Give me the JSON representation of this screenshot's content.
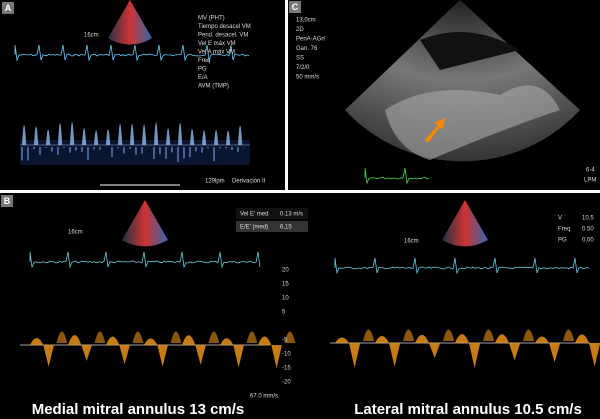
{
  "panels": {
    "a": {
      "label": "A",
      "depth": "16cm",
      "measurements": [
        "MV (PHT)",
        "Tiempo desacel VM",
        "Pend. desacel. VM",
        "Vel E máx VM",
        "Vel A máx VM",
        "Freq",
        "PG",
        "E/A",
        "AVM (TMP)"
      ],
      "heart_rate": "129lpm",
      "lead": "Derivación II"
    },
    "c": {
      "label": "C",
      "settings": [
        "13,0cm",
        "2D",
        "PenA-AGrl",
        "Gan. 76",
        "SS",
        "7/2/0",
        "50 mm/s"
      ],
      "probe": "6-4",
      "mode": "LPM"
    },
    "b": {
      "label": "B",
      "left": {
        "depth": "16cm",
        "readouts": [
          [
            "Vel E' med",
            "0.13 m/s"
          ],
          [
            "E/E' (med)",
            "6.15"
          ]
        ],
        "scale": [
          "20",
          "15",
          "10",
          "5",
          "-5",
          "-10",
          "-15",
          "-20"
        ],
        "sweep": "67.0 mm/s",
        "caption": "Medial mitral annulus 13 cm/s"
      },
      "right": {
        "depth": "16cm",
        "readouts": [
          [
            "V",
            "10.5"
          ],
          [
            "Freq",
            "0.50"
          ],
          [
            "PG",
            "0.00"
          ]
        ],
        "caption": "Lateral mitral annulus 10.5 cm/s"
      }
    }
  }
}
